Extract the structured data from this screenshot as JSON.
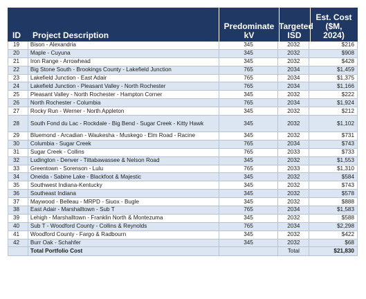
{
  "header": {
    "id": "ID",
    "description": "Project Description",
    "kv_line1": "Predominate",
    "kv_line2": "kV",
    "isd_line1": "Targeted",
    "isd_line2": "ISD",
    "cost_line1": "Est. Cost",
    "cost_line2": "($M,",
    "cost_line3": "2024)"
  },
  "rows": [
    {
      "id": "19",
      "desc": "Bison - Alexandria",
      "kv": "345",
      "isd": "2032",
      "cost": "$216"
    },
    {
      "id": "20",
      "desc": "Maple - Cuyuna",
      "kv": "345",
      "isd": "2032",
      "cost": "$908"
    },
    {
      "id": "21",
      "desc": "Iron Range - Arrowhead",
      "kv": "345",
      "isd": "2032",
      "cost": "$428"
    },
    {
      "id": "22",
      "desc": "Big Stone South - Brookings County - Lakefield Junction",
      "kv": "765",
      "isd": "2034",
      "cost": "$1,459"
    },
    {
      "id": "23",
      "desc": "Lakefield Junction - East Adair",
      "kv": "765",
      "isd": "2034",
      "cost": "$1,375"
    },
    {
      "id": "24",
      "desc": "Lakefield Junction - Pleasant Valley - North Rochester",
      "kv": "765",
      "isd": "2034",
      "cost": "$1,166"
    },
    {
      "id": "25",
      "desc": "Pleasant Valley - North Rochester - Hampton Corner",
      "kv": "345",
      "isd": "2032",
      "cost": "$222"
    },
    {
      "id": "26",
      "desc": "North Rochester - Columbia",
      "kv": "765",
      "isd": "2034",
      "cost": "$1,924"
    },
    {
      "id": "27",
      "desc": "Rocky Run - Werner - North Appleton",
      "kv": "345",
      "isd": "2032",
      "cost": "$212"
    },
    {
      "id": "28",
      "desc": "South Fond du Lac - Rockdale - Big Bend - Sugar Creek - Kitty Hawk",
      "kv": "345",
      "isd": "2032",
      "cost": "$1,102"
    },
    {
      "id": "29",
      "desc": "Bluemond - Arcadian - Waukesha - Muskego - Elm Road - Racine",
      "kv": "345",
      "isd": "2032",
      "cost": "$731"
    },
    {
      "id": "30",
      "desc": "Columbia - Sugar Creek",
      "kv": "765",
      "isd": "2034",
      "cost": "$743"
    },
    {
      "id": "31",
      "desc": "Sugar Creek - Collins",
      "kv": "765",
      "isd": "2033",
      "cost": "$733"
    },
    {
      "id": "32",
      "desc": "Ludington - Denver - Tittabawassee & Nelson Road",
      "kv": "345",
      "isd": "2032",
      "cost": "$1,553"
    },
    {
      "id": "33",
      "desc": "Greentown - Sorenson - Lulu",
      "kv": "765",
      "isd": "2033",
      "cost": "$1,310"
    },
    {
      "id": "34",
      "desc": "Oneida - Sabine Lake - Blackfoot & Majestic",
      "kv": "345",
      "isd": "2032",
      "cost": "$584"
    },
    {
      "id": "35",
      "desc": "Southwest Indiana-Kentucky",
      "kv": "345",
      "isd": "2032",
      "cost": "$743"
    },
    {
      "id": "36",
      "desc": "Southeast Indiana",
      "kv": "345",
      "isd": "2032",
      "cost": "$578"
    },
    {
      "id": "37",
      "desc": "Maywood - Belleau - MRPD - Siuox - Bugle",
      "kv": "345",
      "isd": "2032",
      "cost": "$888"
    },
    {
      "id": "38",
      "desc": "East Adair - Marshalltown - Sub T",
      "kv": "765",
      "isd": "2034",
      "cost": "$1,583"
    },
    {
      "id": "39",
      "desc": "Lehigh - Marshalltown - Franklin North & Montezuma",
      "kv": "345",
      "isd": "2032",
      "cost": "$588"
    },
    {
      "id": "40",
      "desc": "Sub T - Woodford  County  - Collins & Reynolds",
      "kv": "765",
      "isd": "2034",
      "cost": "$2,298"
    },
    {
      "id": "41",
      "desc": "Woodford County - Fargo & Radbourn",
      "kv": "345",
      "isd": "2032",
      "cost": "$422"
    },
    {
      "id": "42",
      "desc": "Burr Oak - Schahfer",
      "kv": "345",
      "isd": "2032",
      "cost": "$68"
    }
  ],
  "total": {
    "label": "Total Portfolio Cost",
    "isd": "Total",
    "cost": "$21,830"
  },
  "colors": {
    "header_bg": "#1f3864",
    "alt_row_bg": "#dce6f2",
    "border": "#b8c4d4"
  }
}
